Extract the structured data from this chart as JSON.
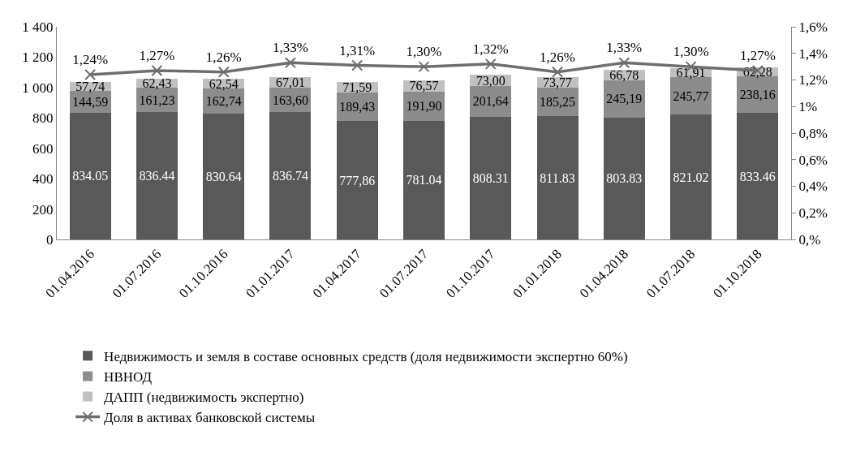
{
  "chart_data": {
    "type": "bar",
    "stacked": true,
    "categories": [
      "01.04.2016",
      "01.07.2016",
      "01.10.2016",
      "01.01.2017",
      "01.04.2017",
      "01.07.2017",
      "01.10.2017",
      "01.01.2018",
      "01.04.2018",
      "01.07.2018",
      "01.10.2018"
    ],
    "series": [
      {
        "name": "Недвижимость и земля в составе основных средств (доля недвижимости экспертно 60%)",
        "color": "#595959",
        "values": [
          834.05,
          836.44,
          830.64,
          836.74,
          777.86,
          781.04,
          808.31,
          811.83,
          803.83,
          821.02,
          833.46
        ],
        "value_labels": [
          "834.05",
          "836.44",
          "830.64",
          "836.74",
          "777,86",
          "781.04",
          "808.31",
          "811.83",
          "803.83",
          "821.02",
          "833.46"
        ]
      },
      {
        "name": "НВНОД",
        "color": "#8c8c8c",
        "values": [
          144.59,
          161.23,
          162.74,
          163.6,
          189.43,
          191.9,
          201.64,
          185.25,
          245.19,
          245.77,
          238.16
        ],
        "value_labels": [
          "144,59",
          "161,23",
          "162,74",
          "163,60",
          "189,43",
          "191,90",
          "201,64",
          "185,25",
          "245,19",
          "245,77",
          "238,16"
        ]
      },
      {
        "name": "ДАПП (недвижимость экспертно)",
        "color": "#c0c0c0",
        "values": [
          57.74,
          62.43,
          62.54,
          67.01,
          71.59,
          76.57,
          73.0,
          73.77,
          66.78,
          61.91,
          62.28
        ],
        "value_labels": [
          "57,74",
          "62,43",
          "62,54",
          "67,01",
          "71,59",
          "76,57",
          "73,00",
          "73,77",
          "66,78",
          "61,91",
          "62,28"
        ]
      },
      {
        "name": "Доля в активах банковской системы",
        "type": "line",
        "axis": "y2",
        "color": "#6e6e6e",
        "marker": "cross",
        "values": [
          1.24,
          1.27,
          1.26,
          1.33,
          1.31,
          1.3,
          1.32,
          1.26,
          1.33,
          1.3,
          1.27
        ],
        "value_labels": [
          "1,24%",
          "1,27%",
          "1,26%",
          "1,33%",
          "1,31%",
          "1,30%",
          "1,32%",
          "1,26%",
          "1,33%",
          "1,30%",
          "1,27%"
        ]
      }
    ],
    "ylim": [
      0,
      1400
    ],
    "yticks": [
      0,
      200,
      400,
      600,
      800,
      {
        "value": 1000,
        "label": "1 000"
      },
      {
        "value": 1200,
        "label": "1 200"
      },
      {
        "value": 1400,
        "label": "1 400"
      }
    ],
    "y2lim": [
      0,
      1.6
    ],
    "y2ticks": [
      {
        "value": 0,
        "label": "0,%"
      },
      {
        "value": 0.2,
        "label": "0,2%"
      },
      {
        "value": 0.4,
        "label": "0,4%"
      },
      {
        "value": 0.6,
        "label": "0,6%"
      },
      {
        "value": 0.8,
        "label": "0,8%"
      },
      {
        "value": 1,
        "label": "1%"
      },
      {
        "value": 1.2,
        "label": "1,2%"
      },
      {
        "value": 1.4,
        "label": "1,4%"
      },
      {
        "value": 1.6,
        "label": "1,6%"
      }
    ],
    "grid": false,
    "legend": "bottom"
  }
}
